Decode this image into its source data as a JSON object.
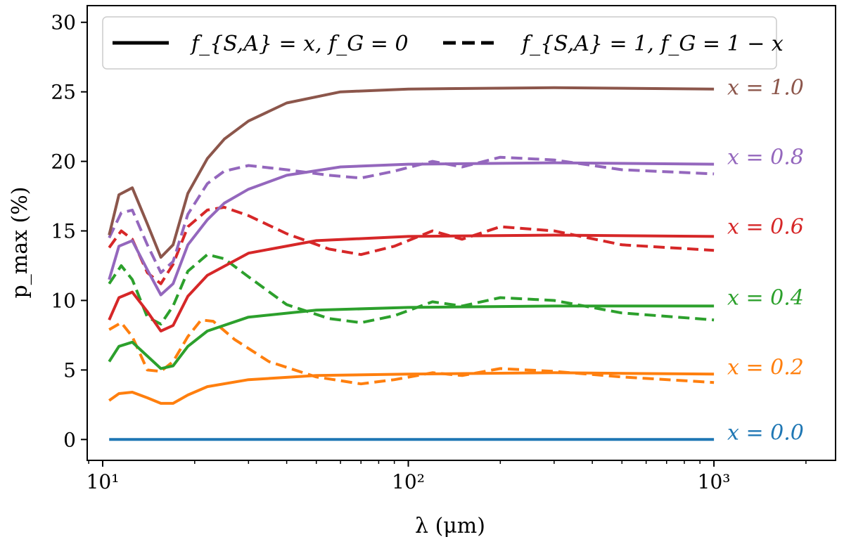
{
  "chart_data": {
    "type": "line",
    "xscale": "log",
    "xlabel": "λ (μm)",
    "ylabel": "p_max (%)",
    "xlim": [
      8.9,
      2500
    ],
    "ylim": [
      -1.5,
      31.2
    ],
    "xticks": [
      {
        "value": 10,
        "label": "10¹"
      },
      {
        "value": 100,
        "label": "10²"
      },
      {
        "value": 1000,
        "label": "10³"
      }
    ],
    "yticks": [
      0,
      5,
      10,
      15,
      20,
      25,
      30
    ],
    "legend": {
      "position": "top",
      "entries": [
        {
          "style": "solid",
          "label": "f_{S,A} = x, f_G = 0"
        },
        {
          "style": "dashed",
          "label": "f_{S,A} = 1, f_G = 1 − x"
        }
      ]
    },
    "series": [
      {
        "name": "x = 0.0",
        "x_value": 0.0,
        "color": "#1f77b4",
        "style": "solid",
        "points": [
          [
            10.5,
            0
          ],
          [
            20,
            0
          ],
          [
            50,
            0
          ],
          [
            100,
            0
          ],
          [
            300,
            0
          ],
          [
            1000,
            0
          ]
        ]
      },
      {
        "name": "x = 0.2",
        "x_value": 0.2,
        "color": "#ff7f0e",
        "style": "solid",
        "points": [
          [
            10.5,
            2.8
          ],
          [
            11.3,
            3.3
          ],
          [
            12.5,
            3.4
          ],
          [
            14,
            3.0
          ],
          [
            15.5,
            2.6
          ],
          [
            17,
            2.6
          ],
          [
            19,
            3.2
          ],
          [
            22,
            3.8
          ],
          [
            30,
            4.3
          ],
          [
            50,
            4.6
          ],
          [
            100,
            4.7
          ],
          [
            300,
            4.8
          ],
          [
            1000,
            4.7
          ]
        ]
      },
      {
        "name": "x = 0.2 dashed",
        "x_value": 0.2,
        "color": "#ff7f0e",
        "style": "dashed",
        "points": [
          [
            10.5,
            7.9
          ],
          [
            11.5,
            8.4
          ],
          [
            12.5,
            7.4
          ],
          [
            14,
            5.0
          ],
          [
            15.5,
            4.9
          ],
          [
            17,
            5.6
          ],
          [
            19,
            7.4
          ],
          [
            21,
            8.6
          ],
          [
            23,
            8.5
          ],
          [
            27,
            7.2
          ],
          [
            35,
            5.6
          ],
          [
            50,
            4.5
          ],
          [
            70,
            4.0
          ],
          [
            90,
            4.3
          ],
          [
            120,
            4.8
          ],
          [
            150,
            4.6
          ],
          [
            200,
            5.1
          ],
          [
            300,
            4.9
          ],
          [
            500,
            4.5
          ],
          [
            1000,
            4.1
          ]
        ]
      },
      {
        "name": "x = 0.4",
        "x_value": 0.4,
        "color": "#2ca02c",
        "style": "solid",
        "points": [
          [
            10.5,
            5.6
          ],
          [
            11.3,
            6.7
          ],
          [
            12.5,
            7.0
          ],
          [
            14,
            6.0
          ],
          [
            15.5,
            5.1
          ],
          [
            17,
            5.3
          ],
          [
            19,
            6.7
          ],
          [
            22,
            7.8
          ],
          [
            30,
            8.8
          ],
          [
            50,
            9.3
          ],
          [
            100,
            9.5
          ],
          [
            300,
            9.6
          ],
          [
            1000,
            9.6
          ]
        ]
      },
      {
        "name": "x = 0.4 dashed",
        "x_value": 0.4,
        "color": "#2ca02c",
        "style": "dashed",
        "points": [
          [
            10.5,
            11.2
          ],
          [
            11.5,
            12.5
          ],
          [
            12.5,
            11.5
          ],
          [
            14,
            8.8
          ],
          [
            15.5,
            8.3
          ],
          [
            17,
            9.6
          ],
          [
            19,
            12.1
          ],
          [
            22,
            13.3
          ],
          [
            25,
            13.0
          ],
          [
            30,
            11.7
          ],
          [
            40,
            9.7
          ],
          [
            55,
            8.7
          ],
          [
            70,
            8.4
          ],
          [
            90,
            8.9
          ],
          [
            120,
            9.9
          ],
          [
            150,
            9.6
          ],
          [
            200,
            10.2
          ],
          [
            300,
            10.0
          ],
          [
            500,
            9.1
          ],
          [
            1000,
            8.6
          ]
        ]
      },
      {
        "name": "x = 0.6",
        "x_value": 0.6,
        "color": "#d62728",
        "style": "solid",
        "points": [
          [
            10.5,
            8.6
          ],
          [
            11.3,
            10.2
          ],
          [
            12.5,
            10.6
          ],
          [
            14,
            9.2
          ],
          [
            15.5,
            7.8
          ],
          [
            17,
            8.2
          ],
          [
            19,
            10.3
          ],
          [
            22,
            11.8
          ],
          [
            30,
            13.4
          ],
          [
            50,
            14.3
          ],
          [
            100,
            14.6
          ],
          [
            300,
            14.7
          ],
          [
            1000,
            14.6
          ]
        ]
      },
      {
        "name": "x = 0.6 dashed",
        "x_value": 0.6,
        "color": "#d62728",
        "style": "dashed",
        "points": [
          [
            10.5,
            13.8
          ],
          [
            11.5,
            15.0
          ],
          [
            12.5,
            14.4
          ],
          [
            14,
            12.0
          ],
          [
            15.5,
            11.2
          ],
          [
            17,
            12.6
          ],
          [
            19,
            15.3
          ],
          [
            22,
            16.5
          ],
          [
            25,
            16.7
          ],
          [
            30,
            16.1
          ],
          [
            40,
            14.8
          ],
          [
            55,
            13.7
          ],
          [
            70,
            13.3
          ],
          [
            90,
            13.9
          ],
          [
            120,
            15.0
          ],
          [
            150,
            14.4
          ],
          [
            200,
            15.3
          ],
          [
            300,
            15.0
          ],
          [
            500,
            14.0
          ],
          [
            1000,
            13.6
          ]
        ]
      },
      {
        "name": "x = 0.8",
        "x_value": 0.8,
        "color": "#9467bd",
        "style": "solid",
        "points": [
          [
            10.5,
            11.5
          ],
          [
            11.3,
            13.9
          ],
          [
            12.5,
            14.3
          ],
          [
            14,
            12.2
          ],
          [
            15.5,
            10.4
          ],
          [
            17,
            11.2
          ],
          [
            19,
            14.0
          ],
          [
            22,
            15.8
          ],
          [
            25,
            17.0
          ],
          [
            30,
            18.0
          ],
          [
            40,
            19.0
          ],
          [
            60,
            19.6
          ],
          [
            100,
            19.8
          ],
          [
            300,
            19.9
          ],
          [
            1000,
            19.8
          ]
        ]
      },
      {
        "name": "x = 0.8 dashed",
        "x_value": 0.8,
        "color": "#9467bd",
        "style": "dashed",
        "points": [
          [
            10.5,
            14.5
          ],
          [
            11.5,
            16.3
          ],
          [
            12.5,
            16.5
          ],
          [
            14,
            14.0
          ],
          [
            15.5,
            12.0
          ],
          [
            17,
            12.8
          ],
          [
            19,
            16.2
          ],
          [
            22,
            18.4
          ],
          [
            25,
            19.3
          ],
          [
            30,
            19.7
          ],
          [
            40,
            19.4
          ],
          [
            55,
            19.0
          ],
          [
            70,
            18.8
          ],
          [
            90,
            19.3
          ],
          [
            120,
            20.0
          ],
          [
            150,
            19.6
          ],
          [
            200,
            20.3
          ],
          [
            300,
            20.1
          ],
          [
            500,
            19.4
          ],
          [
            1000,
            19.1
          ]
        ]
      },
      {
        "name": "x = 1.0",
        "x_value": 1.0,
        "color": "#8c564b",
        "style": "solid",
        "points": [
          [
            10.5,
            14.7
          ],
          [
            11.3,
            17.6
          ],
          [
            12.5,
            18.1
          ],
          [
            14,
            15.5
          ],
          [
            15.5,
            13.1
          ],
          [
            17,
            14.0
          ],
          [
            19,
            17.7
          ],
          [
            22,
            20.2
          ],
          [
            25,
            21.6
          ],
          [
            30,
            22.9
          ],
          [
            40,
            24.2
          ],
          [
            60,
            25.0
          ],
          [
            100,
            25.2
          ],
          [
            300,
            25.3
          ],
          [
            1000,
            25.2
          ]
        ]
      }
    ],
    "curve_labels": [
      {
        "text": "x = 1.0",
        "y": 25.3,
        "color": "#8c564b"
      },
      {
        "text": "x = 0.8",
        "y": 20.3,
        "color": "#9467bd"
      },
      {
        "text": "x = 0.6",
        "y": 15.3,
        "color": "#d62728"
      },
      {
        "text": "x = 0.4",
        "y": 10.2,
        "color": "#2ca02c"
      },
      {
        "text": "x = 0.2",
        "y": 5.2,
        "color": "#ff7f0e"
      },
      {
        "text": "x = 0.0",
        "y": 0.5,
        "color": "#1f77b4"
      }
    ]
  }
}
